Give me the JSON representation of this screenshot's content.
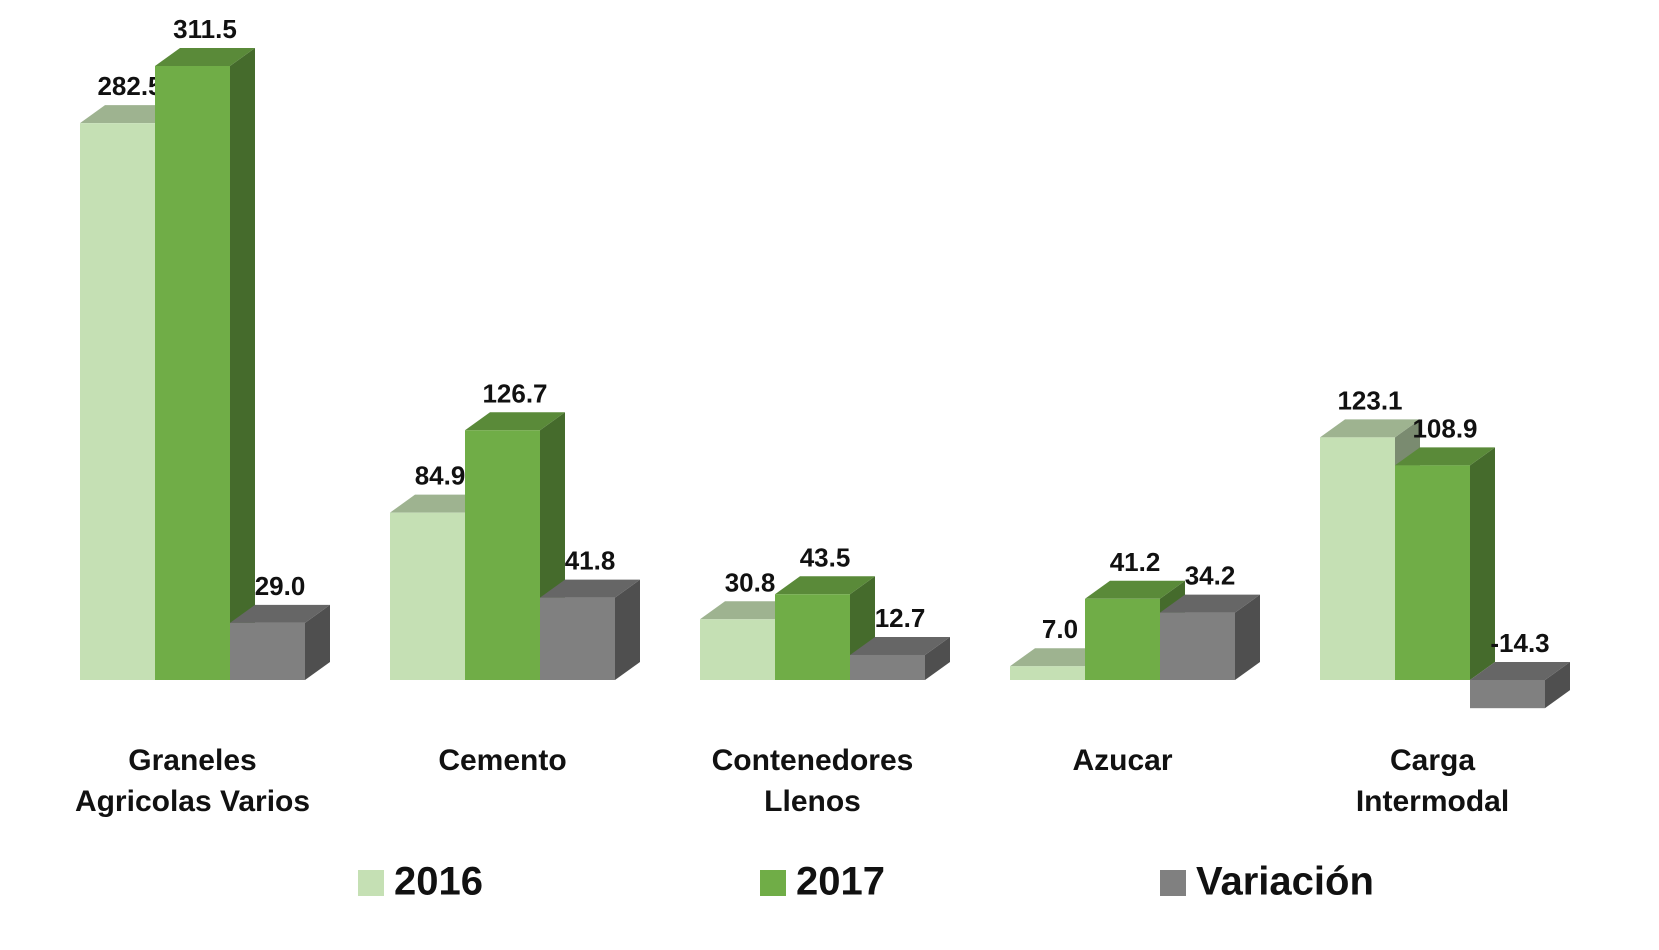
{
  "chart_data": {
    "type": "bar3d",
    "categories": [
      "Graneles\nAgricolas Varios",
      "Cemento",
      "Contenedores\nLlenos",
      "Azucar",
      "Carga\nIntermodal"
    ],
    "series": [
      {
        "name": "2016",
        "color": "#c5e0b4",
        "values": [
          282.5,
          84.9,
          30.8,
          7.0,
          123.1
        ],
        "value_labels": [
          "282.5",
          "84.9",
          "30.8",
          "7.0",
          "123.1"
        ]
      },
      {
        "name": "2017",
        "color": "#70ad47",
        "values": [
          311.5,
          126.7,
          43.5,
          41.2,
          108.9
        ],
        "value_labels": [
          "311.5",
          "126.7",
          "43.5",
          "41.2",
          "108.9"
        ]
      },
      {
        "name": "Variación",
        "color": "#808080",
        "values": [
          29.0,
          41.8,
          12.7,
          34.2,
          -14.3
        ],
        "value_labels": [
          "29.0",
          "41.8",
          "12.7",
          "34.2",
          "-14.3"
        ]
      }
    ],
    "legend": "bottom"
  }
}
